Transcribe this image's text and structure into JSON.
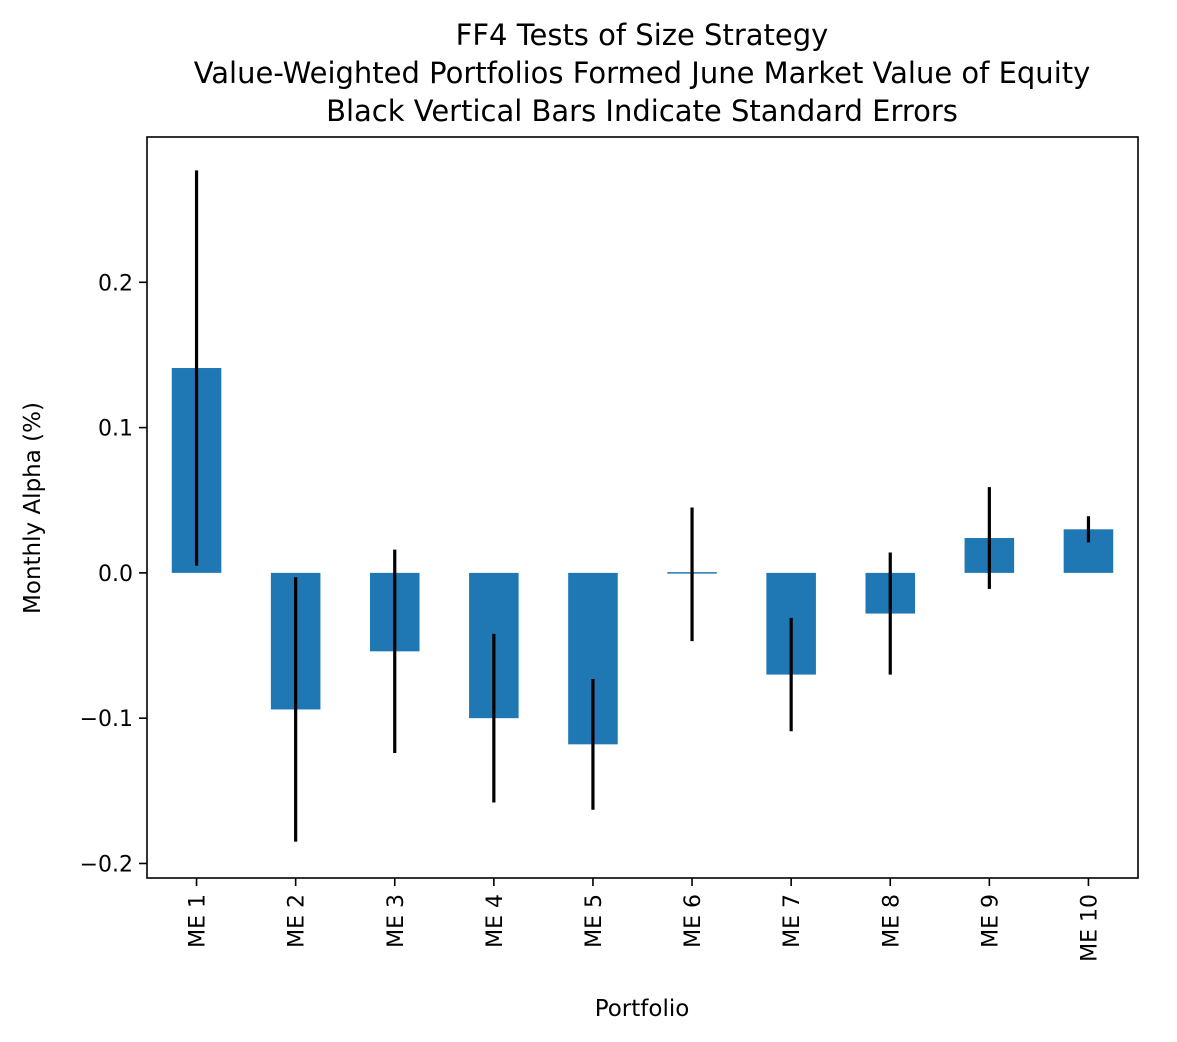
{
  "chart_data": {
    "type": "bar",
    "title": [
      "FF4 Tests of Size Strategy",
      "Value-Weighted Portfolios Formed June Market Value of Equity",
      "Black Vertical Bars Indicate Standard Errors"
    ],
    "xlabel": "Portfolio",
    "ylabel": "Monthly Alpha (%)",
    "categories": [
      "ME 1",
      "ME 2",
      "ME 3",
      "ME 4",
      "ME 5",
      "ME 6",
      "ME 7",
      "ME 8",
      "ME 9",
      "ME 10"
    ],
    "values": [
      0.141,
      -0.094,
      -0.054,
      -0.1,
      -0.118,
      -0.001,
      -0.07,
      -0.028,
      0.024,
      0.03
    ],
    "errors": [
      0.136,
      0.091,
      0.07,
      0.058,
      0.045,
      0.046,
      0.039,
      0.042,
      0.035,
      0.009
    ],
    "ylim": [
      -0.21,
      0.3
    ],
    "yticks": [
      -0.2,
      -0.1,
      0.0,
      0.1,
      0.2
    ],
    "ytick_labels": [
      "−0.2",
      "−0.1",
      "0.0",
      "0.1",
      "0.2"
    ],
    "bar_color": "#1f77b4",
    "error_color": "#000000",
    "grid": false,
    "legend": false
  }
}
